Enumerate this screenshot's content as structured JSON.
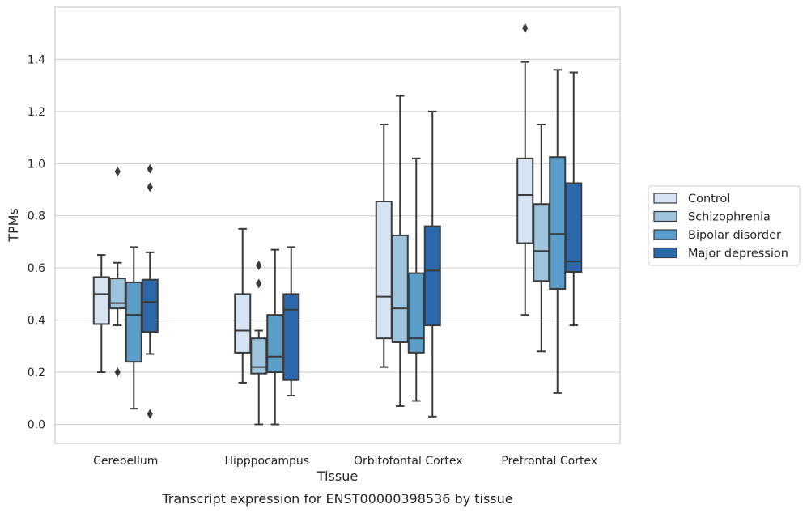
{
  "chart_data": {
    "type": "boxplot",
    "title": "",
    "caption": "Transcript expression for ENST00000398536 by tissue",
    "xlabel": "Tissue",
    "ylabel": "TPMs",
    "ylim": [
      -0.07,
      1.6
    ],
    "yticks": [
      0.0,
      0.2,
      0.4,
      0.6,
      0.8,
      1.0,
      1.2,
      1.4
    ],
    "ytick_labels": [
      "0.0",
      "0.2",
      "0.4",
      "0.6",
      "0.8",
      "1.0",
      "1.2",
      "1.4"
    ],
    "grid": "horizontal",
    "legend_placement": "right",
    "categories": [
      "Cerebellum",
      "Hipppocampus",
      "Orbitofontal Cortex",
      "Prefrontal Cortex"
    ],
    "series": [
      {
        "name": "Control",
        "color": "#d5e3f3",
        "boxes": [
          {
            "whislo": 0.2,
            "q1": 0.385,
            "med": 0.5,
            "q3": 0.565,
            "whishi": 0.65,
            "fliers": []
          },
          {
            "whislo": 0.16,
            "q1": 0.275,
            "med": 0.36,
            "q3": 0.5,
            "whishi": 0.75,
            "fliers": []
          },
          {
            "whislo": 0.22,
            "q1": 0.33,
            "med": 0.49,
            "q3": 0.855,
            "whishi": 1.15,
            "fliers": []
          },
          {
            "whislo": 0.42,
            "q1": 0.695,
            "med": 0.88,
            "q3": 1.02,
            "whishi": 1.39,
            "fliers": [
              1.52
            ]
          }
        ]
      },
      {
        "name": "Schizophrenia",
        "color": "#9dc3dd",
        "boxes": [
          {
            "whislo": 0.38,
            "q1": 0.445,
            "med": 0.465,
            "q3": 0.56,
            "whishi": 0.62,
            "fliers": [
              0.97,
              0.2
            ]
          },
          {
            "whislo": 0.0,
            "q1": 0.195,
            "med": 0.22,
            "q3": 0.33,
            "whishi": 0.36,
            "fliers": [
              0.61,
              0.54
            ]
          },
          {
            "whislo": 0.07,
            "q1": 0.315,
            "med": 0.445,
            "q3": 0.725,
            "whishi": 1.26,
            "fliers": []
          },
          {
            "whislo": 0.28,
            "q1": 0.55,
            "med": 0.665,
            "q3": 0.845,
            "whishi": 1.15,
            "fliers": []
          }
        ]
      },
      {
        "name": "Bipolar disorder",
        "color": "#5b9dc9",
        "boxes": [
          {
            "whislo": 0.06,
            "q1": 0.24,
            "med": 0.42,
            "q3": 0.545,
            "whishi": 0.68,
            "fliers": []
          },
          {
            "whislo": 0.0,
            "q1": 0.2,
            "med": 0.26,
            "q3": 0.42,
            "whishi": 0.67,
            "fliers": []
          },
          {
            "whislo": 0.09,
            "q1": 0.275,
            "med": 0.33,
            "q3": 0.58,
            "whishi": 1.02,
            "fliers": []
          },
          {
            "whislo": 0.12,
            "q1": 0.52,
            "med": 0.73,
            "q3": 1.025,
            "whishi": 1.36,
            "fliers": []
          }
        ]
      },
      {
        "name": "Major depression",
        "color": "#2a68ab",
        "boxes": [
          {
            "whislo": 0.27,
            "q1": 0.355,
            "med": 0.47,
            "q3": 0.555,
            "whishi": 0.66,
            "fliers": [
              0.98,
              0.91,
              0.04
            ]
          },
          {
            "whislo": 0.11,
            "q1": 0.17,
            "med": 0.44,
            "q3": 0.5,
            "whishi": 0.68,
            "fliers": []
          },
          {
            "whislo": 0.03,
            "q1": 0.38,
            "med": 0.59,
            "q3": 0.76,
            "whishi": 1.2,
            "fliers": []
          },
          {
            "whislo": 0.38,
            "q1": 0.585,
            "med": 0.625,
            "q3": 0.925,
            "whishi": 1.35,
            "fliers": []
          }
        ]
      }
    ]
  }
}
